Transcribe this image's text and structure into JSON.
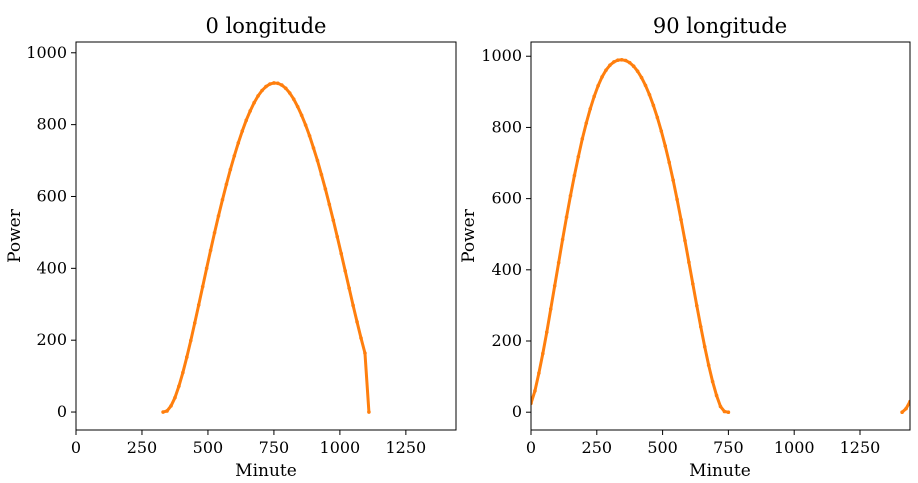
{
  "colors": {
    "series": "#ff7f0e"
  },
  "chart_data": [
    {
      "type": "scatter",
      "title": "0 longitude",
      "xlabel": "Minute",
      "ylabel": "Power",
      "xlim": [
        0,
        1440
      ],
      "ylim": [
        -50,
        1030
      ],
      "xticks": [
        0,
        250,
        500,
        750,
        1000,
        1250
      ],
      "yticks": [
        0,
        200,
        400,
        600,
        800,
        1000
      ],
      "grid": false,
      "series": [
        {
          "points": [
            [
              330,
              0
            ],
            [
              345,
              3
            ],
            [
              360,
              17
            ],
            [
              375,
              40
            ],
            [
              390,
              72
            ],
            [
              405,
              110
            ],
            [
              420,
              153
            ],
            [
              435,
              199
            ],
            [
              450,
              248
            ],
            [
              465,
              298
            ],
            [
              480,
              349
            ],
            [
              495,
              400
            ],
            [
              510,
              450
            ],
            [
              525,
              499
            ],
            [
              540,
              546
            ],
            [
              555,
              591
            ],
            [
              570,
              634
            ],
            [
              585,
              675
            ],
            [
              600,
              713
            ],
            [
              615,
              749
            ],
            [
              630,
              782
            ],
            [
              645,
              812
            ],
            [
              660,
              838
            ],
            [
              675,
              861
            ],
            [
              690,
              880
            ],
            [
              705,
              895
            ],
            [
              720,
              906
            ],
            [
              735,
              913
            ],
            [
              750,
              916
            ],
            [
              765,
              915
            ],
            [
              780,
              910
            ],
            [
              795,
              901
            ],
            [
              810,
              888
            ],
            [
              825,
              871
            ],
            [
              840,
              850
            ],
            [
              855,
              826
            ],
            [
              870,
              799
            ],
            [
              885,
              769
            ],
            [
              900,
              735
            ],
            [
              915,
              700
            ],
            [
              930,
              661
            ],
            [
              945,
              621
            ],
            [
              960,
              578
            ],
            [
              975,
              534
            ],
            [
              990,
              488
            ],
            [
              1005,
              441
            ],
            [
              1020,
              393
            ],
            [
              1035,
              345
            ],
            [
              1050,
              297
            ],
            [
              1065,
              251
            ],
            [
              1080,
              206
            ],
            [
              1095,
              164
            ],
            [
              1110,
              0
            ]
          ]
        }
      ]
    },
    {
      "type": "scatter",
      "title": "90 longitude",
      "xlabel": "Minute",
      "ylabel": "Power",
      "xlim": [
        0,
        1440
      ],
      "ylim": [
        -50,
        1040
      ],
      "xticks": [
        0,
        250,
        500,
        750,
        1000,
        1250
      ],
      "yticks": [
        0,
        200,
        400,
        600,
        800,
        1000
      ],
      "grid": false,
      "series": [
        {
          "points": [
            [
              0,
              25
            ],
            [
              15,
              60
            ],
            [
              30,
              110
            ],
            [
              45,
              165
            ],
            [
              60,
              225
            ],
            [
              75,
              290
            ],
            [
              90,
              355
            ],
            [
              105,
              420
            ],
            [
              120,
              485
            ],
            [
              135,
              548
            ],
            [
              150,
              608
            ],
            [
              165,
              665
            ],
            [
              180,
              718
            ],
            [
              195,
              768
            ],
            [
              210,
              812
            ],
            [
              225,
              852
            ],
            [
              240,
              887
            ],
            [
              255,
              917
            ],
            [
              270,
              942
            ],
            [
              285,
              961
            ],
            [
              300,
              975
            ],
            [
              315,
              984
            ],
            [
              330,
              989
            ],
            [
              345,
              990
            ],
            [
              360,
              988
            ],
            [
              375,
              982
            ],
            [
              390,
              972
            ],
            [
              405,
              958
            ],
            [
              420,
              940
            ],
            [
              435,
              918
            ],
            [
              450,
              892
            ],
            [
              465,
              862
            ],
            [
              480,
              828
            ],
            [
              495,
              790
            ],
            [
              510,
              748
            ],
            [
              525,
              702
            ],
            [
              540,
              652
            ],
            [
              555,
              598
            ],
            [
              570,
              541
            ],
            [
              585,
              482
            ],
            [
              600,
              421
            ],
            [
              615,
              360
            ],
            [
              630,
              299
            ],
            [
              645,
              240
            ],
            [
              660,
              184
            ],
            [
              675,
              132
            ],
            [
              690,
              86
            ],
            [
              705,
              47
            ],
            [
              720,
              16
            ],
            [
              735,
              2
            ],
            [
              750,
              0
            ],
            [
              1410,
              0
            ],
            [
              1425,
              10
            ],
            [
              1440,
              30
            ]
          ]
        }
      ]
    }
  ]
}
